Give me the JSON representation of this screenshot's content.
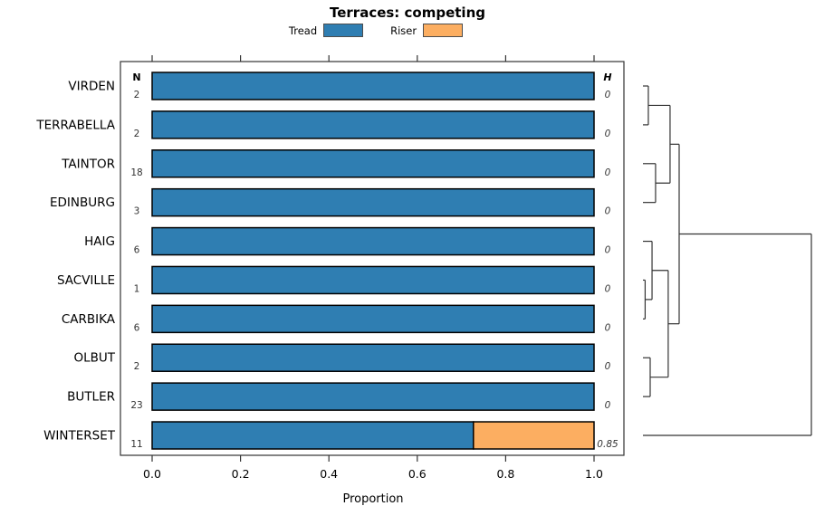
{
  "title": "Terraces: competing",
  "legend": {
    "items": [
      {
        "label": "Tread",
        "color": "#2F7EB2"
      },
      {
        "label": "Riser",
        "color": "#FCAE61"
      }
    ]
  },
  "columns": {
    "n_header": "N",
    "h_header": "H"
  },
  "axis": {
    "label": "Proportion",
    "tick_labels": [
      "0.0",
      "0.2",
      "0.4",
      "0.6",
      "0.8",
      "1.0"
    ],
    "tick_values": [
      0,
      0.2,
      0.4,
      0.6,
      0.8,
      1.0
    ]
  },
  "chart_data": {
    "type": "bar",
    "orientation": "horizontal-stacked",
    "title": "Terraces: competing",
    "xlabel": "Proportion",
    "xlim": [
      0,
      1
    ],
    "legend_position": "top-center",
    "grid": false,
    "categories": [
      "VIRDEN",
      "TERRABELLA",
      "TAINTOR",
      "EDINBURG",
      "HAIG",
      "SACVILLE",
      "CARBIKA",
      "OLBUT",
      "BUTLER",
      "WINTERSET"
    ],
    "series": [
      {
        "name": "Tread",
        "color": "#2F7EB2",
        "values": [
          1,
          1,
          1,
          1,
          1,
          1,
          1,
          1,
          1,
          0.727
        ]
      },
      {
        "name": "Riser",
        "color": "#FCAE61",
        "values": [
          0,
          0,
          0,
          0,
          0,
          0,
          0,
          0,
          0,
          0.273
        ]
      }
    ],
    "n_values": [
      "2",
      "2",
      "18",
      "3",
      "6",
      "1",
      "6",
      "2",
      "23",
      "11"
    ],
    "h_values": [
      "0",
      "0",
      "0",
      "0",
      "0",
      "0",
      "0",
      "0",
      "0",
      "0.85"
    ],
    "dendrogram": {
      "leaves": [
        "VIRDEN",
        "TERRABELLA",
        "TAINTOR",
        "EDINBURG",
        "HAIG",
        "SACVILLE",
        "CARBIKA",
        "OLBUT",
        "BUTLER",
        "WINTERSET"
      ],
      "merges": [
        {
          "a": "L0",
          "b": "L1",
          "h": 0.032
        },
        {
          "a": "L2",
          "b": "L3",
          "h": 0.075
        },
        {
          "a": "N0",
          "b": "N1",
          "h": 0.161
        },
        {
          "a": "L5",
          "b": "L6",
          "h": 0.013
        },
        {
          "a": "L4",
          "b": "N3",
          "h": 0.054
        },
        {
          "a": "L7",
          "b": "L8",
          "h": 0.043
        },
        {
          "a": "N4",
          "b": "N5",
          "h": 0.15
        },
        {
          "a": "N2",
          "b": "N6",
          "h": 0.215
        },
        {
          "a": "N7",
          "b": "L9",
          "h": 1.0
        }
      ]
    }
  }
}
